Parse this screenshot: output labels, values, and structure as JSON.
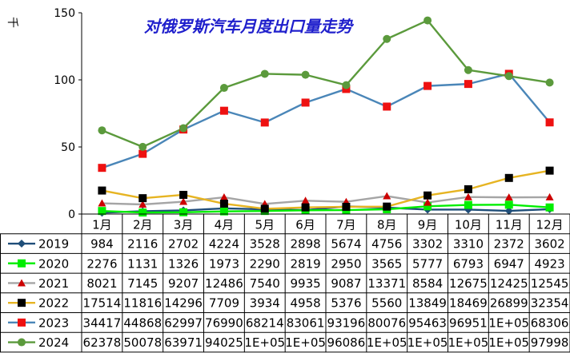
{
  "chart_data": {
    "type": "line",
    "title": "对俄罗斯汽车月度出口量走势",
    "ylabel": "千",
    "ylim": [
      0,
      150
    ],
    "yticks": [
      0,
      50,
      100,
      150
    ],
    "grid": false,
    "legend_placement": "data-table",
    "categories": [
      "1月",
      "2月",
      "3月",
      "4月",
      "5月",
      "6月",
      "7月",
      "8月",
      "9月",
      "10月",
      "11月",
      "12月"
    ],
    "series": [
      {
        "name": "2019",
        "color": "#1f4e79",
        "marker": "diamond",
        "values": [
          0.984,
          2.116,
          2.702,
          4.224,
          3.528,
          2.898,
          5.674,
          4.756,
          3.302,
          3.31,
          2.372,
          3.602
        ],
        "table": [
          "984",
          "2116",
          "2702",
          "4224",
          "3528",
          "2898",
          "5674",
          "4756",
          "3302",
          "3310",
          "2372",
          "3602"
        ]
      },
      {
        "name": "2020",
        "color": "#00ee00",
        "marker": "square",
        "values": [
          2.276,
          1.131,
          1.326,
          1.973,
          2.29,
          2.819,
          2.95,
          3.565,
          5.777,
          6.793,
          6.947,
          4.923
        ],
        "table": [
          "2276",
          "1131",
          "1326",
          "1973",
          "2290",
          "2819",
          "2950",
          "3565",
          "5777",
          "6793",
          "6947",
          "4923"
        ]
      },
      {
        "name": "2021",
        "color": "#a5a5a5",
        "marker": "triangle",
        "markerColor": "#cc0000",
        "values": [
          8.021,
          7.145,
          9.207,
          12.486,
          7.54,
          9.935,
          9.087,
          13.371,
          8.584,
          12.675,
          12.425,
          12.545
        ],
        "table": [
          "8021",
          "7145",
          "9207",
          "12486",
          "7540",
          "9935",
          "9087",
          "13371",
          "8584",
          "12675",
          "12425",
          "12545"
        ]
      },
      {
        "name": "2022",
        "color": "#e6b422",
        "marker": "square",
        "markerColor": "#000000",
        "values": [
          17.514,
          11.816,
          14.296,
          7.709,
          3.934,
          4.958,
          5.376,
          5.56,
          13.849,
          18.469,
          26.899,
          32.354
        ],
        "table": [
          "17514",
          "11816",
          "14296",
          "7709",
          "3934",
          "4958",
          "5376",
          "5560",
          "13849",
          "18469",
          "26899",
          "32354"
        ]
      },
      {
        "name": "2023",
        "color": "#4a86b8",
        "marker": "square",
        "markerColor": "#ee1111",
        "values": [
          34.417,
          44.868,
          62.997,
          76.99,
          68.214,
          83.061,
          93.196,
          80.076,
          95.463,
          96.951,
          104.5,
          68.306
        ],
        "table": [
          "34417",
          "44868",
          "62997",
          "76990",
          "68214",
          "83061",
          "93196",
          "80076",
          "95463",
          "96951",
          "1E+05",
          "68306"
        ]
      },
      {
        "name": "2024",
        "color": "#5b9a3c",
        "marker": "circle",
        "values": [
          62.378,
          50.078,
          63.971,
          94.025,
          104.5,
          103.8,
          96.086,
          130.5,
          144.3,
          107.3,
          102.8,
          97.998
        ],
        "table": [
          "62378",
          "50078",
          "63971",
          "94025",
          "1E+05",
          "1E+05",
          "96086",
          "1E+05",
          "1E+05",
          "1E+05",
          "1E+05",
          "97998"
        ]
      }
    ]
  }
}
